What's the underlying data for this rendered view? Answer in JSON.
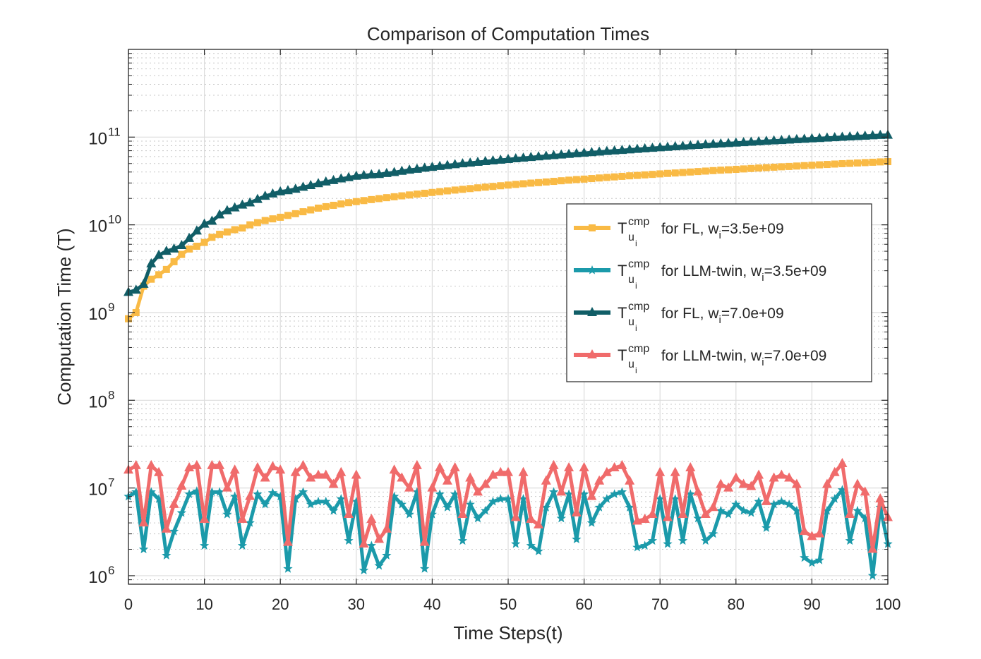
{
  "chart_data": {
    "type": "line",
    "title": "Comparison of Computation Times",
    "xlabel": "Time Steps(t)",
    "ylabel": "Computation Time (T)",
    "xlim": [
      0,
      100
    ],
    "ylim": [
      800000,
      1000000000000
    ],
    "yscale": "log",
    "grid": true,
    "minor_grid": true,
    "legend_position": "right-center",
    "x_ticks": [
      "0",
      "10",
      "20",
      "30",
      "40",
      "50",
      "60",
      "70",
      "80",
      "90",
      "100"
    ],
    "y_ticks": [
      {
        "value": 1000000,
        "label": "10",
        "exp": "6"
      },
      {
        "value": 10000000,
        "label": "10",
        "exp": "7"
      },
      {
        "value": 100000000,
        "label": "10",
        "exp": "8"
      },
      {
        "value": 1000000000,
        "label": "10",
        "exp": "9"
      },
      {
        "value": 10000000000,
        "label": "10",
        "exp": "10"
      },
      {
        "value": 100000000000,
        "label": "10",
        "exp": "11"
      }
    ],
    "x": [
      0,
      1,
      2,
      3,
      4,
      5,
      6,
      7,
      8,
      9,
      10,
      11,
      12,
      13,
      14,
      15,
      16,
      17,
      18,
      19,
      20,
      21,
      22,
      23,
      24,
      25,
      26,
      27,
      28,
      29,
      30,
      31,
      32,
      33,
      34,
      35,
      36,
      37,
      38,
      39,
      40,
      41,
      42,
      43,
      44,
      45,
      46,
      47,
      48,
      49,
      50,
      51,
      52,
      53,
      54,
      55,
      56,
      57,
      58,
      59,
      60,
      61,
      62,
      63,
      64,
      65,
      66,
      67,
      68,
      69,
      70,
      71,
      72,
      73,
      74,
      75,
      76,
      77,
      78,
      79,
      80,
      81,
      82,
      83,
      84,
      85,
      86,
      87,
      88,
      89,
      90,
      91,
      92,
      93,
      94,
      95,
      96,
      97,
      98,
      99,
      100
    ],
    "series": [
      {
        "name_main": "T",
        "name_sup": "cmp",
        "name_sub": "u",
        "name_subsub": "i",
        "name_mid": " for FL, w",
        "name_wsub": "i",
        "name_tail": "=3.5e+09",
        "color": "#F9BA45",
        "marker": "square",
        "values": [
          850000000.0,
          1000000000.0,
          2000000000.0,
          2400000000.0,
          2700000000.0,
          3100000000.0,
          3800000000.0,
          4600000000.0,
          5300000000.0,
          5700000000.0,
          6300000000.0,
          7200000000.0,
          7800000000.0,
          8300000000.0,
          8800000000.0,
          9200000000.0,
          10000000000.0,
          10600000000.0,
          11200000000.0,
          11700000000.0,
          12200000000.0,
          12800000000.0,
          13400000000.0,
          14100000000.0,
          14800000000.0,
          15500000000.0,
          16100000000.0,
          16700000000.0,
          17300000000.0,
          17900000000.0,
          18400000000.0,
          18900000000.0,
          19400000000.0,
          19900000000.0,
          20400000000.0,
          20900000000.0,
          21400000000.0,
          21900000000.0,
          22400000000.0,
          22900000000.0,
          23400000000.0,
          23900000000.0,
          24400000000.0,
          24900000000.0,
          25400000000.0,
          25900000000.0,
          26400000000.0,
          26900000000.0,
          27400000000.0,
          27900000000.0,
          28400000000.0,
          28900000000.0,
          29400000000.0,
          29900000000.0,
          30300000000.0,
          30800000000.0,
          31300000000.0,
          31800000000.0,
          32300000000.0,
          32800000000.0,
          33200000000.0,
          33700000000.0,
          34200000000.0,
          34700000000.0,
          35200000000.0,
          35700000000.0,
          36200000000.0,
          36600000000.0,
          37100000000.0,
          37600000000.0,
          38100000000.0,
          38600000000.0,
          39000000000.0,
          39500000000.0,
          40000000000.0,
          40500000000.0,
          41000000000.0,
          41500000000.0,
          42000000000.0,
          42400000000.0,
          42900000000.0,
          43400000000.0,
          43900000000.0,
          44400000000.0,
          44900000000.0,
          45400000000.0,
          45900000000.0,
          46300000000.0,
          46800000000.0,
          47300000000.0,
          47800000000.0,
          48300000000.0,
          48800000000.0,
          49300000000.0,
          49800000000.0,
          50200000000.0,
          50700000000.0,
          51200000000.0,
          51700000000.0,
          52200000000.0,
          52600000000.0
        ]
      },
      {
        "name_main": "T",
        "name_sup": "cmp",
        "name_sub": "u",
        "name_subsub": "i",
        "name_mid": " for LLM-twin, w",
        "name_wsub": "i",
        "name_tail": "=3.5e+09",
        "color": "#1B9AAA",
        "marker": "star",
        "values": [
          8000000.0,
          9000000.0,
          2000000.0,
          9000000.0,
          7500000.0,
          1700000.0,
          3200000.0,
          5200000.0,
          8500000.0,
          9200000.0,
          2200000.0,
          9000000.0,
          9000000.0,
          5000000.0,
          8000000.0,
          2200000.0,
          4000000.0,
          8500000.0,
          6500000.0,
          8800000.0,
          8000000.0,
          1200000.0,
          7500000.0,
          9000000.0,
          6500000.0,
          7000000.0,
          7000000.0,
          5500000.0,
          7500000.0,
          2500000.0,
          7000000.0,
          1150000.0,
          2200000.0,
          1300000.0,
          1700000.0,
          8000000.0,
          6500000.0,
          5000000.0,
          9000000.0,
          1200000.0,
          5000000.0,
          8500000.0,
          6000000.0,
          8500000.0,
          2500000.0,
          6500000.0,
          4500000.0,
          5500000.0,
          7000000.0,
          7500000.0,
          7500000.0,
          2300000.0,
          7500000.0,
          2200000.0,
          1900000.0,
          6000000.0,
          9000000.0,
          4500000.0,
          8500000.0,
          2600000.0,
          8500000.0,
          4000000.0,
          6000000.0,
          7500000.0,
          8500000.0,
          9000000.0,
          6000000.0,
          2100000.0,
          2200000.0,
          2500000.0,
          7500000.0,
          2300000.0,
          7500000.0,
          2500000.0,
          8500000.0,
          4500000.0,
          2500000.0,
          3000000.0,
          5500000.0,
          5000000.0,
          6500000.0,
          5500000.0,
          5200000.0,
          7000000.0,
          3500000.0,
          6500000.0,
          7000000.0,
          6500000.0,
          5500000.0,
          1600000.0,
          1400000.0,
          1500000.0,
          5500000.0,
          7500000.0,
          9500000.0,
          2500000.0,
          5500000.0,
          4500000.0,
          1000000.0,
          6000000.0,
          2300000.0
        ]
      },
      {
        "name_main": "T",
        "name_sup": "cmp",
        "name_sub": "u",
        "name_subsub": "i",
        "name_mid": " for FL, w",
        "name_wsub": "i",
        "name_tail": "=7.0e+09",
        "color": "#115E67",
        "marker": "triangle",
        "values": [
          1700000000.0,
          1800000000.0,
          2100000000.0,
          3600000000.0,
          4500000000.0,
          5000000000.0,
          5300000000.0,
          5800000000.0,
          7000000000.0,
          8500000000.0,
          10200000000.0,
          11000000000.0,
          13000000000.0,
          14500000000.0,
          15600000000.0,
          16800000000.0,
          17800000000.0,
          19500000000.0,
          21200000000.0,
          22500000000.0,
          23800000000.0,
          24500000000.0,
          25500000000.0,
          26800000000.0,
          28000000000.0,
          29500000000.0,
          30800000000.0,
          32000000000.0,
          33400000000.0,
          34500000000.0,
          35800000000.0,
          36500000000.0,
          37200000000.0,
          37500000000.0,
          38500000000.0,
          39500000000.0,
          40800000000.0,
          42000000000.0,
          43000000000.0,
          44200000000.0,
          45300000000.0,
          46300000000.0,
          47400000000.0,
          48500000000.0,
          49600000000.0,
          50600000000.0,
          51600000000.0,
          52600000000.0,
          53600000000.0,
          54600000000.0,
          55600000000.0,
          56600000000.0,
          57600000000.0,
          58600000000.0,
          59600000000.0,
          60600000000.0,
          61600000000.0,
          62600000000.0,
          63600000000.0,
          64600000000.0,
          65600000000.0,
          66600000000.0,
          67600000000.0,
          68600000000.0,
          69600000000.0,
          70600000000.0,
          71600000000.0,
          72600000000.0,
          73600000000.0,
          74600000000.0,
          75600000000.0,
          76600000000.0,
          77600000000.0,
          78600000000.0,
          79600000000.0,
          80600000000.0,
          81600000000.0,
          82600000000.0,
          83600000000.0,
          84600000000.0,
          85600000000.0,
          86600000000.0,
          87600000000.0,
          88600000000.0,
          89600000000.0,
          90600000000.0,
          91600000000.0,
          92600000000.0,
          93600000000.0,
          94600000000.0,
          95600000000.0,
          96600000000.0,
          97600000000.0,
          98600000000.0,
          99600000000.0,
          100600000000.0,
          101600000000.0,
          102600000000.0,
          103600000000.0,
          104600000000.0,
          105200000000.0
        ]
      },
      {
        "name_main": "T",
        "name_sup": "cmp",
        "name_sub": "u",
        "name_subsub": "i",
        "name_mid": " for LLM-twin, w",
        "name_wsub": "i",
        "name_tail": "=7.0e+09",
        "color": "#F06B6B",
        "marker": "triangle",
        "values": [
          16000000.0,
          18000000.0,
          4000000.0,
          18000000.0,
          15000000.0,
          3400000.0,
          6500000.0,
          10500000.0,
          17000000.0,
          18000000.0,
          4400000.0,
          18000000.0,
          18000000.0,
          10000000.0,
          16000000.0,
          4400000.0,
          8000000.0,
          17000000.0,
          13000000.0,
          17500000.0,
          16000000.0,
          2400000.0,
          15000000.0,
          18000000.0,
          13000000.0,
          14000000.0,
          14000000.0,
          11000000.0,
          15000000.0,
          5000000.0,
          14000000.0,
          2300000.0,
          4400000.0,
          2600000.0,
          3400000.0,
          16000000.0,
          13000000.0,
          10000000.0,
          18000000.0,
          2400000.0,
          10000000.0,
          17000000.0,
          12000000.0,
          17000000.0,
          5000000.0,
          13000000.0,
          9000000.0,
          11000000.0,
          14000000.0,
          15000000.0,
          15000000.0,
          4600000.0,
          15000000.0,
          4400000.0,
          3800000.0,
          12000000.0,
          18000000.0,
          9000000.0,
          17000000.0,
          5200000.0,
          17000000.0,
          8000000.0,
          12000000.0,
          15000000.0,
          17000000.0,
          18000000.0,
          12000000.0,
          4200000.0,
          4400000.0,
          5000000.0,
          15000000.0,
          4600000.0,
          15000000.0,
          5000000.0,
          17000000.0,
          9000000.0,
          5000000.0,
          6000000.0,
          11000000.0,
          10000000.0,
          13000000.0,
          11000000.0,
          10400000.0,
          14000000.0,
          7000000.0,
          13000000.0,
          14000000.0,
          13000000.0,
          11000000.0,
          3200000.0,
          2800000.0,
          3000000.0,
          11000000.0,
          15000000.0,
          19000000.0,
          5000000.0,
          11000000.0,
          9000000.0,
          2000000.0,
          7500000.0,
          4600000.0
        ]
      }
    ]
  }
}
